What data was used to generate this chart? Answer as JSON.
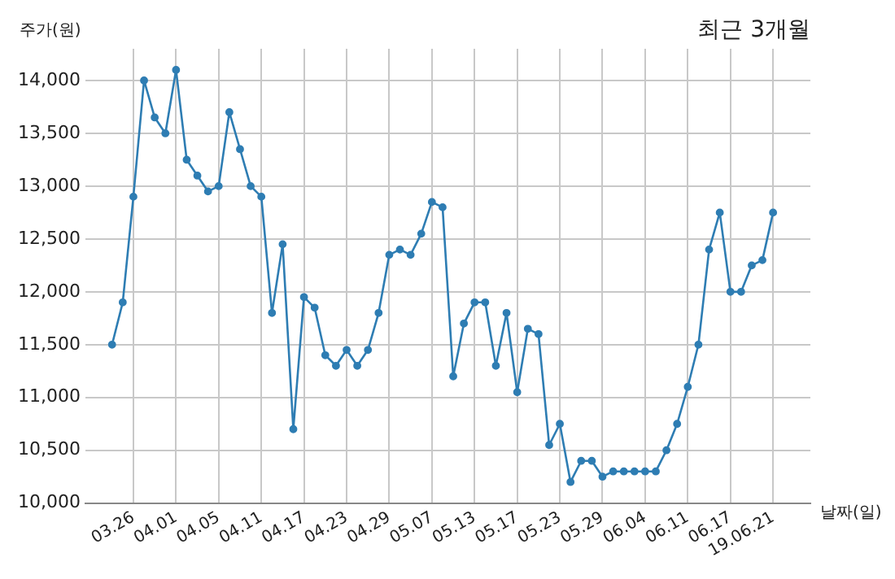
{
  "chart_data": {
    "type": "line",
    "title": "최근 3개월",
    "xlabel": "날짜(일)",
    "ylabel": "주가(원)",
    "categories": [
      null,
      null,
      "03.26",
      null,
      null,
      null,
      "04.01",
      null,
      null,
      null,
      "04.05",
      null,
      null,
      null,
      "04.11",
      null,
      null,
      null,
      "04.17",
      null,
      null,
      null,
      "04.23",
      null,
      null,
      null,
      "04.29",
      null,
      null,
      null,
      "05.07",
      null,
      null,
      null,
      "05.13",
      null,
      null,
      null,
      "05.17",
      null,
      null,
      null,
      "05.23",
      null,
      null,
      null,
      "05.29",
      null,
      null,
      null,
      "06.04",
      null,
      null,
      null,
      "06.11",
      null,
      null,
      null,
      "06.17",
      null,
      null,
      null,
      "19.06.21"
    ],
    "series": [
      {
        "color": "#2e7db3",
        "values": [
          11500,
          11900,
          12900,
          14000,
          13650,
          13500,
          14100,
          13250,
          13100,
          12950,
          13000,
          13700,
          13350,
          13000,
          12900,
          11800,
          12450,
          10700,
          11950,
          11850,
          11400,
          11300,
          11450,
          11300,
          11450,
          11800,
          12350,
          12400,
          12350,
          12550,
          12850,
          12800,
          11200,
          11700,
          11900,
          11900,
          11300,
          11800,
          11050,
          11650,
          11600,
          10550,
          10750,
          10200,
          10400,
          10400,
          10250,
          10300,
          10300,
          10300,
          10300,
          10300,
          10500,
          10750,
          11100,
          11500,
          12400,
          12750,
          12000,
          12000,
          12250,
          12300,
          12750
        ]
      }
    ],
    "ylim": [
      10000,
      14300
    ],
    "yticks": [
      {
        "value": 10000,
        "label": "10,000"
      },
      {
        "value": 10500,
        "label": "10,500"
      },
      {
        "value": 11000,
        "label": "11,000"
      },
      {
        "value": 11500,
        "label": "11,500"
      },
      {
        "value": 12000,
        "label": "12,000"
      },
      {
        "value": 12500,
        "label": "12,500"
      },
      {
        "value": 13000,
        "label": "13,000"
      },
      {
        "value": 13500,
        "label": "13,500"
      },
      {
        "value": 14000,
        "label": "14,000"
      }
    ],
    "grid": true,
    "legend": false,
    "marker": "circle",
    "line_style": "solid"
  }
}
